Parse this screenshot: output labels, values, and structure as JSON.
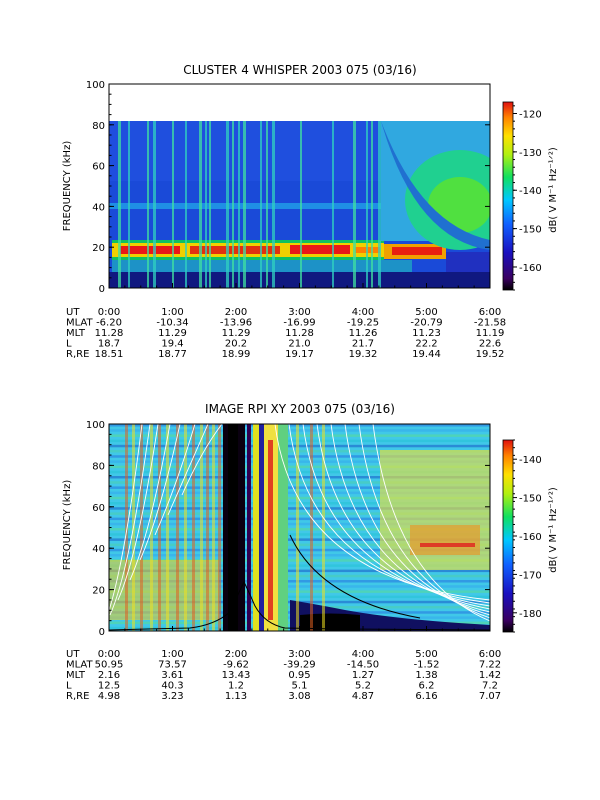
{
  "chart_data": [
    {
      "type": "heatmap",
      "title": "CLUSTER 4 WHISPER 2003 075 (03/16)",
      "ylabel": "FREQUENCY (kHz)",
      "ylim": [
        0,
        100
      ],
      "y_ticks": [
        "0",
        "20",
        "40",
        "60",
        "80",
        "100"
      ],
      "x_ticks": [
        "0:00",
        "1:00",
        "2:00",
        "3:00",
        "4:00",
        "5:00",
        "6:00"
      ],
      "xlim_hours": [
        0,
        6
      ],
      "colorbar": {
        "label": "dB( V M⁻¹ Hz⁻¹ᐟ²)",
        "ticks": [
          "-120",
          "-130",
          "-140",
          "-150",
          "-160"
        ],
        "range": [
          -166,
          -117
        ]
      },
      "orbit_table": {
        "row_labels": [
          "UT",
          "MLAT",
          "MLT",
          "L",
          "R,RE"
        ],
        "columns": [
          [
            "0:00",
            "-6.20",
            "11.28",
            "18.7",
            "18.51"
          ],
          [
            "1:00",
            "-10.34",
            "11.29",
            "19.4",
            "18.77"
          ],
          [
            "2:00",
            "-13.96",
            "11.29",
            "20.2",
            "18.99"
          ],
          [
            "3:00",
            "-16.99",
            "11.28",
            "21.0",
            "19.17"
          ],
          [
            "4:00",
            "-19.25",
            "11.26",
            "21.7",
            "19.32"
          ],
          [
            "5:00",
            "-20.79",
            "11.23",
            "22.2",
            "19.44"
          ],
          [
            "6:00",
            "-21.58",
            "11.19",
            "22.6",
            "19.52"
          ]
        ]
      }
    },
    {
      "type": "heatmap",
      "title": "IMAGE RPI XY 2003 075 (03/16)",
      "ylabel": "FREQUENCY (kHz)",
      "ylim": [
        0,
        100
      ],
      "y_ticks": [
        "0",
        "20",
        "40",
        "60",
        "80",
        "100"
      ],
      "x_ticks": [
        "0:00",
        "1:00",
        "2:00",
        "3:00",
        "4:00",
        "5:00",
        "6:00"
      ],
      "xlim_hours": [
        0,
        6
      ],
      "colorbar": {
        "label": "dB( V M⁻¹ Hz⁻¹ᐟ²)",
        "ticks": [
          "-140",
          "-150",
          "-160",
          "-170",
          "-180"
        ],
        "range": [
          -185,
          -135
        ]
      },
      "orbit_table": {
        "row_labels": [
          "UT",
          "MLAT",
          "MLT",
          "L",
          "R,RE"
        ],
        "columns": [
          [
            "0:00",
            "50.95",
            "2.16",
            "12.5",
            "4.98"
          ],
          [
            "1:00",
            "73.57",
            "3.61",
            "40.3",
            "3.23"
          ],
          [
            "2:00",
            "-9.62",
            "13.43",
            "1.2",
            "1.13"
          ],
          [
            "3:00",
            "-39.29",
            "0.95",
            "5.1",
            "3.08"
          ],
          [
            "4:00",
            "-14.50",
            "1.27",
            "5.2",
            "4.87"
          ],
          [
            "5:00",
            "-1.52",
            "1.38",
            "6.2",
            "6.16"
          ],
          [
            "6:00",
            "7.22",
            "1.42",
            "7.2",
            "7.07"
          ]
        ]
      }
    }
  ]
}
